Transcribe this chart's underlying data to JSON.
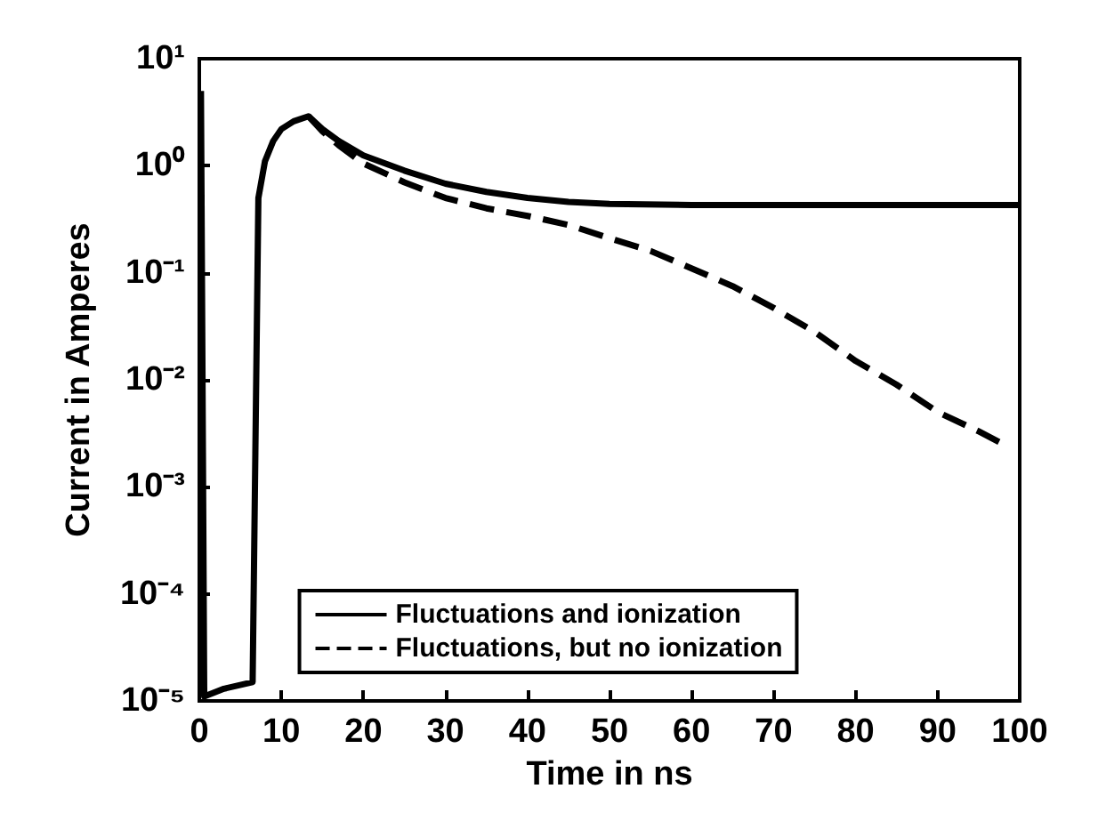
{
  "chart_data": {
    "type": "line",
    "xlabel": "Time in ns",
    "ylabel": "Current in Amperes",
    "log": "y",
    "xlim": [
      0,
      100
    ],
    "xticks": [
      0,
      10,
      20,
      30,
      40,
      50,
      60,
      70,
      80,
      90,
      100
    ],
    "ylim": [
      1e-05,
      10
    ],
    "yticks": [
      {
        "value": 1e-05,
        "label": "10⁻⁵"
      },
      {
        "value": 0.0001,
        "label": "10⁻⁴"
      },
      {
        "value": 0.001,
        "label": "10⁻³"
      },
      {
        "value": 0.01,
        "label": "10⁻²"
      },
      {
        "value": 0.1,
        "label": "10⁻¹"
      },
      {
        "value": 1,
        "label": "10⁰"
      },
      {
        "value": 10,
        "label": "10¹"
      }
    ],
    "grid": false,
    "legend": "bottom",
    "marker": "none",
    "series": [
      {
        "name": "Fluctuations and ionization",
        "color": "#000000",
        "line_style": "solid",
        "x": [
          0.2,
          0.6,
          3,
          6.5,
          7.2,
          8,
          9,
          10,
          11.5,
          13.3,
          15,
          17,
          20,
          25,
          30,
          35,
          40,
          45,
          50,
          60,
          70,
          80,
          90,
          100
        ],
        "values": [
          5,
          1.1e-05,
          1.3e-05,
          1.5e-05,
          0.5,
          1.1,
          1.7,
          2.2,
          2.6,
          2.9,
          2.2,
          1.7,
          1.25,
          0.9,
          0.68,
          0.57,
          0.5,
          0.46,
          0.44,
          0.43,
          0.43,
          0.43,
          0.43,
          0.43
        ]
      },
      {
        "name": "Fluctuations, but no ionization",
        "color": "#000000",
        "line_style": "dashed",
        "x": [
          13.3,
          15,
          17,
          20,
          25,
          30,
          35,
          40,
          45,
          50,
          55,
          60,
          65,
          70,
          75,
          80,
          85,
          90,
          95,
          98
        ],
        "values": [
          2.9,
          2.1,
          1.55,
          1.05,
          0.7,
          0.5,
          0.4,
          0.34,
          0.28,
          0.21,
          0.16,
          0.11,
          0.075,
          0.047,
          0.028,
          0.015,
          0.009,
          0.005,
          0.0033,
          0.0025
        ]
      }
    ]
  }
}
